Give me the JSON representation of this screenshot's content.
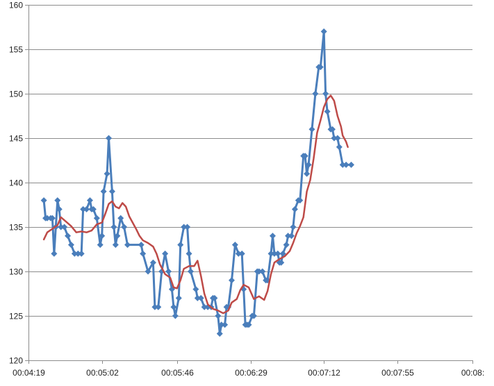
{
  "chart_data": {
    "type": "line",
    "title": "",
    "xlabel": "",
    "ylabel": "",
    "ylim": [
      120,
      160
    ],
    "yticks": [
      120,
      125,
      130,
      135,
      140,
      145,
      150,
      155,
      160
    ],
    "xlim_seconds": [
      259,
      519
    ],
    "xticks": [
      {
        "seconds": 259,
        "label": "00:04:19"
      },
      {
        "seconds": 302,
        "label": "00:05:02"
      },
      {
        "seconds": 346,
        "label": "00:05:46"
      },
      {
        "seconds": 389,
        "label": "00:06:29"
      },
      {
        "seconds": 432,
        "label": "00:07:12"
      },
      {
        "seconds": 475,
        "label": "00:07:55"
      },
      {
        "seconds": 519,
        "label": "00:08:"
      }
    ],
    "grid": "horizontal",
    "legend": "none",
    "series": [
      {
        "color": "#4a7ebb",
        "marker": "diamond",
        "points": [
          [
            268,
            138
          ],
          [
            269,
            136
          ],
          [
            270,
            136
          ],
          [
            272,
            136
          ],
          [
            273,
            136
          ],
          [
            274,
            132
          ],
          [
            275,
            135
          ],
          [
            276,
            138
          ],
          [
            277,
            137
          ],
          [
            278,
            135
          ],
          [
            280,
            135
          ],
          [
            282,
            134
          ],
          [
            284,
            133
          ],
          [
            286,
            132
          ],
          [
            288,
            132
          ],
          [
            290,
            132
          ],
          [
            291,
            137
          ],
          [
            293,
            137
          ],
          [
            295,
            138
          ],
          [
            296,
            137
          ],
          [
            297,
            137
          ],
          [
            299,
            136
          ],
          [
            301,
            133
          ],
          [
            302,
            134
          ],
          [
            303,
            139
          ],
          [
            305,
            141
          ],
          [
            306,
            145
          ],
          [
            308,
            139
          ],
          [
            309,
            135
          ],
          [
            310,
            133
          ],
          [
            311,
            134
          ],
          [
            313,
            136
          ],
          [
            315,
            135
          ],
          [
            317,
            133
          ],
          [
            325,
            133
          ],
          [
            326,
            132
          ],
          [
            329,
            130
          ],
          [
            332,
            131
          ],
          [
            333,
            126
          ],
          [
            335,
            126
          ],
          [
            337,
            130
          ],
          [
            339,
            132
          ],
          [
            341,
            130
          ],
          [
            343,
            128
          ],
          [
            344,
            126
          ],
          [
            345,
            125
          ],
          [
            347,
            127
          ],
          [
            348,
            133
          ],
          [
            350,
            135
          ],
          [
            352,
            135
          ],
          [
            353,
            132
          ],
          [
            354,
            130
          ],
          [
            357,
            128
          ],
          [
            358,
            127
          ],
          [
            360,
            127
          ],
          [
            362,
            126
          ],
          [
            364,
            126
          ],
          [
            366,
            126
          ],
          [
            367,
            127
          ],
          [
            368,
            127
          ],
          [
            370,
            125
          ],
          [
            371,
            123
          ],
          [
            372,
            124
          ],
          [
            374,
            124
          ],
          [
            375,
            126
          ],
          [
            376,
            126
          ],
          [
            378,
            129
          ],
          [
            380,
            133
          ],
          [
            382,
            132
          ],
          [
            384,
            132
          ],
          [
            385,
            128
          ],
          [
            386,
            124
          ],
          [
            387,
            124
          ],
          [
            388,
            124
          ],
          [
            390,
            125
          ],
          [
            391,
            125
          ],
          [
            393,
            130
          ],
          [
            394,
            130
          ],
          [
            396,
            130
          ],
          [
            398,
            129
          ],
          [
            399,
            129
          ],
          [
            401,
            132
          ],
          [
            402,
            134
          ],
          [
            403,
            132
          ],
          [
            405,
            132
          ],
          [
            406,
            131
          ],
          [
            407,
            131
          ],
          [
            408,
            132
          ],
          [
            410,
            133
          ],
          [
            411,
            134
          ],
          [
            413,
            134
          ],
          [
            414,
            135
          ],
          [
            415,
            137
          ],
          [
            417,
            138
          ],
          [
            418,
            138
          ],
          [
            420,
            143
          ],
          [
            421,
            143
          ],
          [
            422,
            141
          ],
          [
            423,
            142
          ],
          [
            425,
            146
          ],
          [
            427,
            150
          ],
          [
            429,
            153
          ],
          [
            430,
            153
          ],
          [
            432,
            157
          ],
          [
            433,
            150
          ],
          [
            434,
            148
          ],
          [
            436,
            146
          ],
          [
            437,
            146
          ],
          [
            438,
            145
          ],
          [
            440,
            145
          ],
          [
            441,
            144
          ],
          [
            443,
            142
          ],
          [
            445,
            142
          ],
          [
            448,
            142
          ]
        ]
      },
      {
        "color": "#be4b48",
        "marker": "none",
        "points": [
          [
            268,
            133.6
          ],
          [
            270,
            134.4
          ],
          [
            273,
            134.8
          ],
          [
            276,
            135.2
          ],
          [
            278,
            136.1
          ],
          [
            281,
            135.6
          ],
          [
            284,
            135.1
          ],
          [
            287,
            134.4
          ],
          [
            290,
            134.5
          ],
          [
            293,
            134.4
          ],
          [
            296,
            134.6
          ],
          [
            299,
            135.3
          ],
          [
            302,
            135.5
          ],
          [
            304,
            136.5
          ],
          [
            306,
            137.6
          ],
          [
            308,
            137.9
          ],
          [
            310,
            137.3
          ],
          [
            312,
            137.1
          ],
          [
            314,
            137.7
          ],
          [
            316,
            137.3
          ],
          [
            318,
            136.2
          ],
          [
            320,
            135.5
          ],
          [
            322,
            134.8
          ],
          [
            324,
            134.0
          ],
          [
            326,
            133.5
          ],
          [
            329,
            133.2
          ],
          [
            332,
            132.8
          ],
          [
            334,
            132.0
          ],
          [
            336,
            130.8
          ],
          [
            339,
            129.7
          ],
          [
            342,
            129.3
          ],
          [
            344,
            128.2
          ],
          [
            346,
            128.1
          ],
          [
            348,
            129.0
          ],
          [
            350,
            130.3
          ],
          [
            353,
            130.6
          ],
          [
            356,
            130.6
          ],
          [
            358,
            131.2
          ],
          [
            360,
            129.5
          ],
          [
            362,
            127.5
          ],
          [
            364,
            126.3
          ],
          [
            367,
            125.8
          ],
          [
            370,
            125.6
          ],
          [
            373,
            125.3
          ],
          [
            376,
            125.6
          ],
          [
            378,
            126.5
          ],
          [
            381,
            126.9
          ],
          [
            383,
            127.9
          ],
          [
            385,
            128.5
          ],
          [
            388,
            128.2
          ],
          [
            391,
            126.9
          ],
          [
            394,
            127.2
          ],
          [
            397,
            126.8
          ],
          [
            399,
            127.8
          ],
          [
            401,
            129.7
          ],
          [
            403,
            131.0
          ],
          [
            406,
            131.4
          ],
          [
            409,
            131.7
          ],
          [
            412,
            132.3
          ],
          [
            414,
            133.2
          ],
          [
            416,
            134.3
          ],
          [
            418,
            135.1
          ],
          [
            420,
            136.1
          ],
          [
            422,
            139.0
          ],
          [
            424,
            140.3
          ],
          [
            426,
            142.7
          ],
          [
            428,
            145.6
          ],
          [
            430,
            147.0
          ],
          [
            432,
            148.5
          ],
          [
            434,
            149.4
          ],
          [
            436,
            149.8
          ],
          [
            438,
            149.2
          ],
          [
            440,
            147.5
          ],
          [
            442,
            146.3
          ],
          [
            443,
            145.3
          ],
          [
            445,
            144.6
          ],
          [
            446,
            144.0
          ]
        ]
      }
    ]
  }
}
